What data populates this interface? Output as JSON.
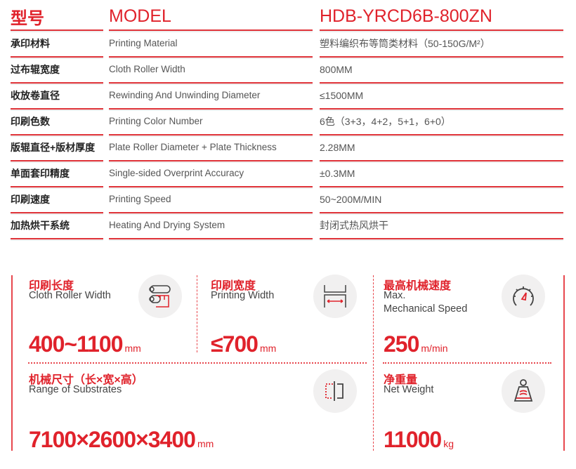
{
  "spec_table": {
    "header": {
      "zh": "型号",
      "en": "MODEL",
      "value": "HDB-YRCD6B-800ZN"
    },
    "rows": [
      {
        "zh": "承印材料",
        "en": "Printing Material",
        "value": "塑料编织布等筒类材料（50-150G/M²）"
      },
      {
        "zh": "过布辊宽度",
        "en": "Cloth Roller Width",
        "value": "800MM"
      },
      {
        "zh": "收放卷直径",
        "en": "Rewinding And Unwinding Diameter",
        "value": "≤1500MM"
      },
      {
        "zh": "印刷色数",
        "en": "Printing Color Number",
        "value": "6色（3+3，4+2，5+1，6+0）"
      },
      {
        "zh": "版辊直径+版材厚度",
        "en": "Plate Roller Diameter + Plate Thickness",
        "value": "2.28MM"
      },
      {
        "zh": "单面套印精度",
        "en": "Single-sided Overprint Accuracy",
        "value": "±0.3MM"
      },
      {
        "zh": "印刷速度",
        "en": "Printing Speed",
        "value": "50~200M/MIN"
      },
      {
        "zh": "加热烘干系统",
        "en": "Heating And Drying System",
        "value": "封闭式热风烘干"
      }
    ]
  },
  "cards": [
    {
      "zh": "印刷长度",
      "en": "Cloth Roller Width",
      "value": "400~1100",
      "unit": "mm",
      "icon": "rollers-icon"
    },
    {
      "zh": "印刷宽度",
      "en": "Printing Width",
      "value": "≤700",
      "unit": "mm",
      "icon": "width-icon"
    },
    {
      "zh": "最高机械速度",
      "en": "Max.\nMechanical Speed",
      "value": "250",
      "unit": "m/min",
      "icon": "speedometer-icon"
    },
    {
      "zh": "机械尺寸（长×宽×高）",
      "en": "Range of Substrates",
      "value": "7100×2600×3400",
      "unit": "mm",
      "icon": "dimensions-icon"
    },
    {
      "zh": "净重量",
      "en": "Net Weight",
      "value": "11000",
      "unit": "kg",
      "icon": "weight-icon"
    }
  ],
  "colors": {
    "accent": "#e0222b"
  }
}
